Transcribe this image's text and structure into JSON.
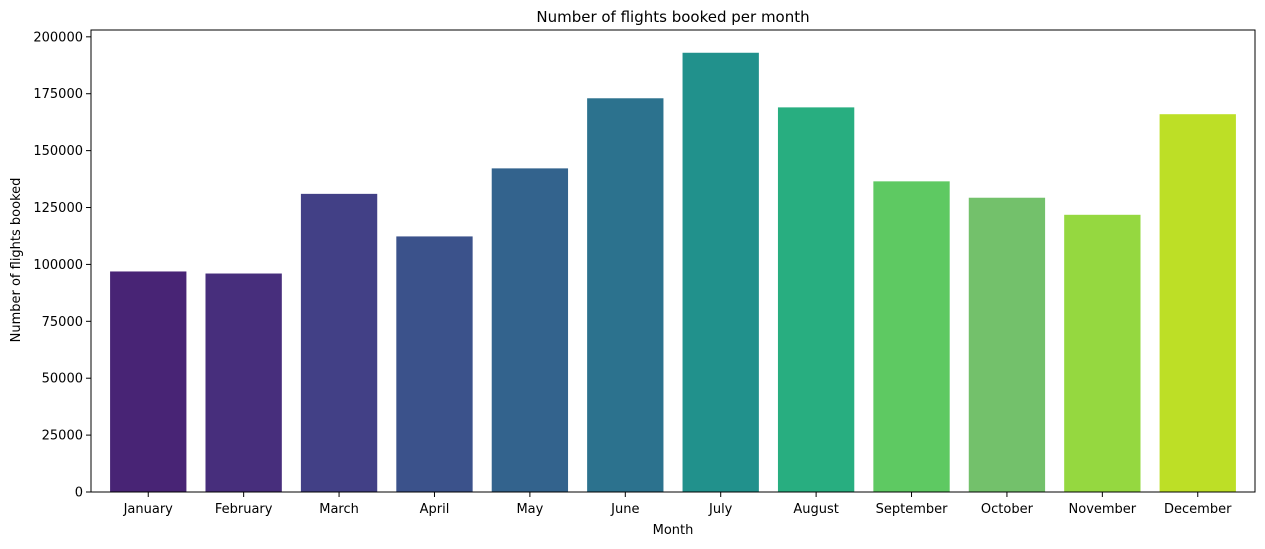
{
  "chart_data": {
    "type": "bar",
    "title": "Number of flights booked per month",
    "xlabel": "Month",
    "ylabel": "Number of flights booked",
    "categories": [
      "January",
      "February",
      "March",
      "April",
      "May",
      "June",
      "July",
      "August",
      "September",
      "October",
      "November",
      "December"
    ],
    "values": [
      96900,
      96000,
      131000,
      112300,
      142200,
      173000,
      193000,
      169000,
      136500,
      129300,
      121800,
      166000
    ],
    "ylim": [
      0,
      203000
    ],
    "yticks": [
      0,
      25000,
      50000,
      75000,
      100000,
      125000,
      150000,
      175000,
      200000
    ],
    "ytick_labels": [
      "0",
      "25000",
      "50000",
      "75000",
      "100000",
      "125000",
      "150000",
      "175000",
      "200000"
    ],
    "grid": false,
    "legend": "none",
    "colors": [
      "#482475",
      "#472e7c",
      "#424086",
      "#3b528b",
      "#33638d",
      "#2c728e",
      "#21918c",
      "#28ae80",
      "#5ec962",
      "#73c16b",
      "#95d840",
      "#bddf26"
    ]
  }
}
